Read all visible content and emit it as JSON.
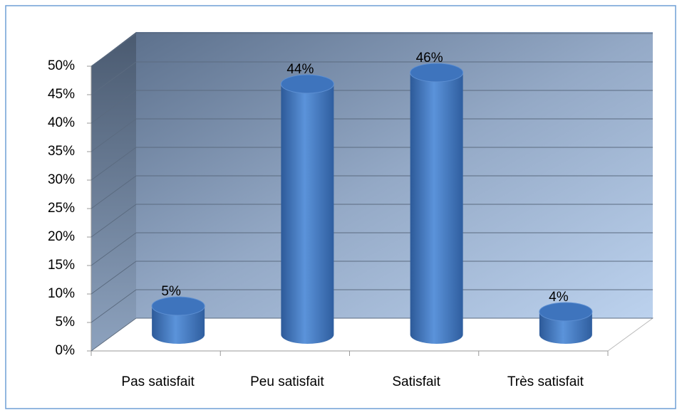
{
  "chart_data": {
    "type": "bar",
    "categories": [
      "Pas satisfait",
      "Peu satisfait",
      "Satisfait",
      "Très satisfait"
    ],
    "values": [
      5,
      44,
      46,
      4
    ],
    "value_labels": [
      "5%",
      "44%",
      "46%",
      "4%"
    ],
    "color": "#4a7ec4",
    "ylim": [
      0,
      50
    ],
    "yticks": [
      {
        "value": 0,
        "label": "0%"
      },
      {
        "value": 5,
        "label": "5%"
      },
      {
        "value": 10,
        "label": "10%"
      },
      {
        "value": 15,
        "label": "15%"
      },
      {
        "value": 20,
        "label": "20%"
      },
      {
        "value": 25,
        "label": "25%"
      },
      {
        "value": 30,
        "label": "30%"
      },
      {
        "value": 35,
        "label": "35%"
      },
      {
        "value": 40,
        "label": "40%"
      },
      {
        "value": 45,
        "label": "45%"
      },
      {
        "value": 50,
        "label": "50%"
      }
    ],
    "grid": true
  }
}
